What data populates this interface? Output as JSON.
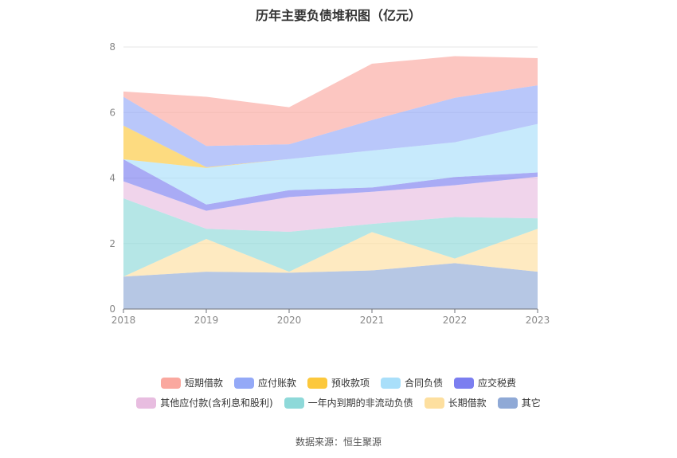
{
  "chart_data": {
    "type": "area",
    "stacked": true,
    "title": "历年主要负债堆积图（亿元）",
    "x": [
      "2018",
      "2019",
      "2020",
      "2021",
      "2022",
      "2023"
    ],
    "ylim": [
      0,
      8
    ],
    "yticks": [
      0,
      2,
      4,
      6,
      8
    ],
    "grid": true,
    "legend_position": "bottom",
    "series": [
      {
        "name": "其它",
        "color": "#8fa9d6",
        "values": [
          0.99,
          1.14,
          1.11,
          1.18,
          1.4,
          1.14
        ]
      },
      {
        "name": "长期借款",
        "color": "#fddf9f",
        "values": [
          0.0,
          1.0,
          0.03,
          1.17,
          0.14,
          1.31
        ]
      },
      {
        "name": "一年内到期的非流动负债",
        "color": "#8ed9d9",
        "values": [
          2.39,
          0.31,
          1.22,
          0.25,
          1.27,
          0.32
        ]
      },
      {
        "name": "其他应付款(含利息和股利)",
        "color": "#e8bde0",
        "values": [
          0.52,
          0.55,
          1.06,
          0.98,
          0.97,
          1.27
        ]
      },
      {
        "name": "应交税费",
        "color": "#7b7ef0",
        "values": [
          0.67,
          0.19,
          0.21,
          0.13,
          0.25,
          0.13
        ]
      },
      {
        "name": "合同负债",
        "color": "#a9dffa",
        "values": [
          0.0,
          1.12,
          0.95,
          1.13,
          1.06,
          1.48
        ]
      },
      {
        "name": "预收款项",
        "color": "#fcc83c",
        "values": [
          1.03,
          0.02,
          0.0,
          0.0,
          0.0,
          0.0
        ]
      },
      {
        "name": "应付账款",
        "color": "#94a9f7",
        "values": [
          0.88,
          0.65,
          0.45,
          0.93,
          1.36,
          1.18
        ]
      },
      {
        "name": "短期借款",
        "color": "#faa89f",
        "values": [
          0.16,
          1.5,
          1.13,
          1.72,
          1.27,
          0.83
        ]
      }
    ]
  },
  "legend": {
    "row1": [
      "短期借款",
      "应付账款",
      "预收款项",
      "合同负债",
      "应交税费"
    ],
    "row2": [
      "其他应付款(含利息和股利)",
      "一年内到期的非流动负债",
      "长期借款",
      "其它"
    ]
  },
  "colors": {
    "短期借款": "#faa89f",
    "应付账款": "#94a9f7",
    "预收款项": "#fcc83c",
    "合同负债": "#a9dffa",
    "应交税费": "#7b7ef0",
    "其他应付款(含利息和股利)": "#e8bde0",
    "一年内到期的非流动负债": "#8ed9d9",
    "长期借款": "#fddf9f",
    "其它": "#8fa9d6"
  },
  "source": "数据来源：恒生聚源"
}
